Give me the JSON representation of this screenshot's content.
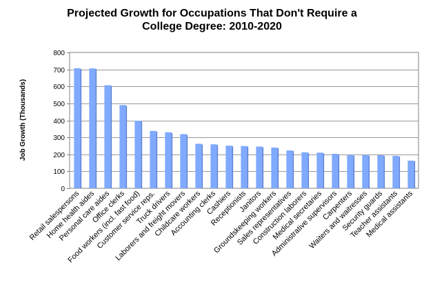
{
  "chart_data": {
    "type": "bar",
    "title_line1": "Projected Growth for Occupations That Don't Require a",
    "title_line2": "College Degree: 2010-2020",
    "xlabel": "",
    "ylabel": "Job Growth (Thousands)",
    "ylim": [
      0,
      800
    ],
    "yticks": [
      0,
      100,
      200,
      300,
      400,
      500,
      600,
      700,
      800
    ],
    "grid": true,
    "legend": "none",
    "categories": [
      "Retail salespersons",
      "Home health aides",
      "Personal care aides",
      "Office clerks",
      "Food workers (incl. fast food)",
      "Customer service reps.",
      "Truck drivers",
      "Laborers and freight movers",
      "Childcare workers",
      "Accounting clerks",
      "Cashiers",
      "Receptionists",
      "Janitors",
      "Groundskeeping workers",
      "Sales representatives",
      "Construction laborers",
      "Medical secretaries",
      "Administrative supervisors",
      "Carpenters",
      "Waiters and waitresses",
      "Security guards",
      "Teacher assistants",
      "Medical assistants"
    ],
    "values": [
      707,
      706,
      607,
      490,
      398,
      338,
      330,
      319,
      262,
      259,
      251,
      249,
      246,
      240,
      223,
      212,
      210,
      203,
      196,
      196,
      195,
      191,
      163
    ],
    "bar_color": "#80aaff",
    "bar_shade_color": "#5a7fd6"
  }
}
